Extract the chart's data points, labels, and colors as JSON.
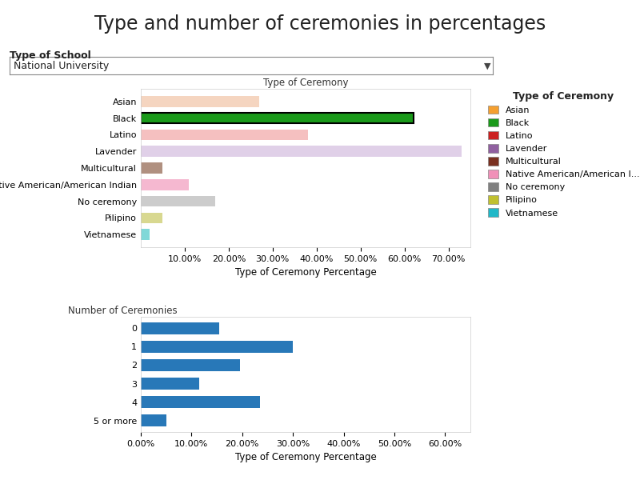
{
  "title": "Type and number of ceremonies in percentages",
  "school_label": "Type of School",
  "school_value": "National University",
  "chart1_title": "Type of Ceremony",
  "chart1_xlabel": "Type of Ceremony Percentage",
  "chart1_categories": [
    "Asian",
    "Black",
    "Latino",
    "Lavender",
    "Multicultural",
    "Native American/American Indian",
    "No ceremony",
    "Pilipino",
    "Vietnamese"
  ],
  "chart1_values": [
    0.27,
    0.62,
    0.38,
    0.73,
    0.05,
    0.11,
    0.17,
    0.05,
    0.02
  ],
  "chart1_colors": [
    "#f5d5c0",
    "#1a9a1a",
    "#f5c0c0",
    "#e0d0e8",
    "#b09080",
    "#f5b8d0",
    "#cccccc",
    "#d8d890",
    "#80d8d8"
  ],
  "chart1_bar_edge": [
    "none",
    "black",
    "none",
    "none",
    "none",
    "none",
    "none",
    "none",
    "none"
  ],
  "chart1_xlim": [
    0,
    0.75
  ],
  "chart1_xticks": [
    0.1,
    0.2,
    0.3,
    0.4,
    0.5,
    0.6,
    0.7
  ],
  "chart2_title": "Number of Ceremonies",
  "chart2_xlabel": "Type of Ceremony Percentage",
  "chart2_categories": [
    "0",
    "1",
    "2",
    "3",
    "4",
    "5 or more"
  ],
  "chart2_values": [
    0.155,
    0.3,
    0.195,
    0.115,
    0.235,
    0.05
  ],
  "chart2_color": "#2878b8",
  "chart2_xlim": [
    0,
    0.65
  ],
  "chart2_xticks": [
    0.0,
    0.1,
    0.2,
    0.3,
    0.4,
    0.5,
    0.6
  ],
  "legend_title": "Type of Ceremony",
  "legend_labels": [
    "Asian",
    "Black",
    "Latino",
    "Lavender",
    "Multicultural",
    "Native American/American I...",
    "No ceremony",
    "Pilipino",
    "Vietnamese"
  ],
  "legend_colors": [
    "#f5a030",
    "#1a9a1a",
    "#cc2020",
    "#9060a0",
    "#7a3020",
    "#f090b8",
    "#808080",
    "#c0c030",
    "#20b8c8"
  ],
  "background_color": "#ffffff",
  "title_fontsize": 17,
  "label_fontsize": 8.5,
  "tick_fontsize": 8
}
